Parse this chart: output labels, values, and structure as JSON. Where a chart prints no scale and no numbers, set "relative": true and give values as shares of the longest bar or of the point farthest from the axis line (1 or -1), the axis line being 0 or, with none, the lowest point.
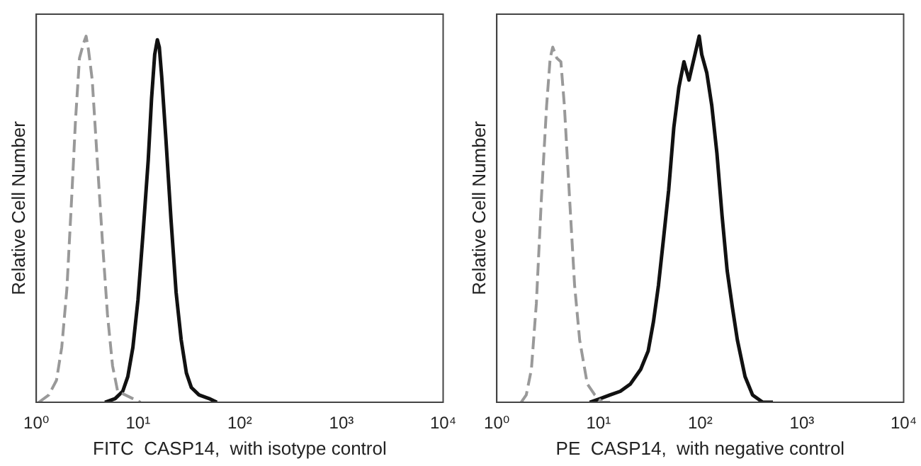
{
  "chart_data": [
    {
      "type": "line",
      "xlabel": "FITC  CASP14,  with isotype control",
      "ylabel": "Relative Cell Number",
      "relative": true,
      "log": "x",
      "xlim": [
        1,
        10000
      ],
      "xticks": [
        {
          "value": 1,
          "label": "10⁰"
        },
        {
          "value": 10,
          "label": "10¹"
        },
        {
          "value": 100,
          "label": "10²"
        },
        {
          "value": 1000,
          "label": "10³"
        },
        {
          "value": 10000,
          "label": "10⁴"
        }
      ],
      "tick_labels": "x",
      "grid": false,
      "legend": false,
      "marker": "none",
      "series": [
        {
          "color": "#999999",
          "line_style": "dashed",
          "x": [
            1.06,
            1.33,
            1.58,
            1.78,
            2.0,
            2.24,
            2.43,
            2.66,
            2.91,
            3.09,
            3.27,
            3.55,
            3.98,
            4.47,
            5.01,
            5.62,
            6.31,
            7.5,
            8.9,
            10.6
          ],
          "values": [
            0.0,
            0.02,
            0.06,
            0.15,
            0.31,
            0.57,
            0.77,
            0.94,
            0.98,
            1.0,
            0.96,
            0.88,
            0.66,
            0.44,
            0.24,
            0.1,
            0.03,
            0.02,
            0.01,
            0.0
          ]
        },
        {
          "color": "#111111",
          "line_style": "solid",
          "x": [
            4.73,
            5.96,
            7.08,
            7.94,
            8.91,
            10.0,
            11.2,
            12.6,
            13.6,
            14.6,
            15.5,
            16.2,
            17.1,
            18.8,
            21.1,
            23.7,
            26.6,
            29.9,
            33.5,
            39.8,
            50.1,
            59.6
          ],
          "values": [
            0.0,
            0.01,
            0.03,
            0.07,
            0.15,
            0.28,
            0.46,
            0.66,
            0.83,
            0.95,
            0.99,
            0.97,
            0.89,
            0.72,
            0.5,
            0.3,
            0.17,
            0.08,
            0.04,
            0.02,
            0.01,
            0.0
          ]
        }
      ]
    },
    {
      "type": "line",
      "xlabel": "PE  CASP14,  with negative control",
      "ylabel": "Relative Cell Number",
      "relative": true,
      "log": "x",
      "xlim": [
        1,
        10000
      ],
      "xticks": [
        {
          "value": 1,
          "label": "10⁰"
        },
        {
          "value": 10,
          "label": "10¹"
        },
        {
          "value": 100,
          "label": "10²"
        },
        {
          "value": 1000,
          "label": "10³"
        },
        {
          "value": 10000,
          "label": "10⁴"
        }
      ],
      "tick_labels": "x",
      "grid": false,
      "legend": false,
      "marker": "none",
      "series": [
        {
          "color": "#999999",
          "line_style": "dashed",
          "x": [
            1.74,
            1.95,
            2.19,
            2.45,
            2.75,
            3.09,
            3.35,
            3.55,
            3.89,
            4.27,
            4.62,
            5.19,
            5.82,
            6.53,
            7.76,
            9.2,
            10.9,
            13.0
          ],
          "values": [
            0.0,
            0.02,
            0.09,
            0.27,
            0.56,
            0.81,
            0.94,
            0.97,
            0.94,
            0.93,
            0.81,
            0.56,
            0.32,
            0.17,
            0.05,
            0.02,
            0.0,
            0.0
          ]
        },
        {
          "color": "#111111",
          "line_style": "solid",
          "x": [
            8.2,
            10.4,
            13.0,
            16.4,
            20.6,
            26.0,
            30.8,
            34.7,
            38.9,
            43.7,
            49.0,
            55.0,
            61.7,
            69.2,
            77.6,
            87.1,
            97.7,
            103.5,
            116,
            130,
            146,
            164,
            184,
            207,
            232,
            276,
            327,
            412,
            519
          ],
          "values": [
            0.0,
            0.01,
            0.02,
            0.03,
            0.05,
            0.09,
            0.14,
            0.22,
            0.32,
            0.45,
            0.58,
            0.75,
            0.86,
            0.93,
            0.88,
            0.94,
            1.0,
            0.95,
            0.9,
            0.81,
            0.68,
            0.51,
            0.36,
            0.26,
            0.17,
            0.07,
            0.02,
            0.0,
            0.0
          ]
        }
      ]
    }
  ]
}
